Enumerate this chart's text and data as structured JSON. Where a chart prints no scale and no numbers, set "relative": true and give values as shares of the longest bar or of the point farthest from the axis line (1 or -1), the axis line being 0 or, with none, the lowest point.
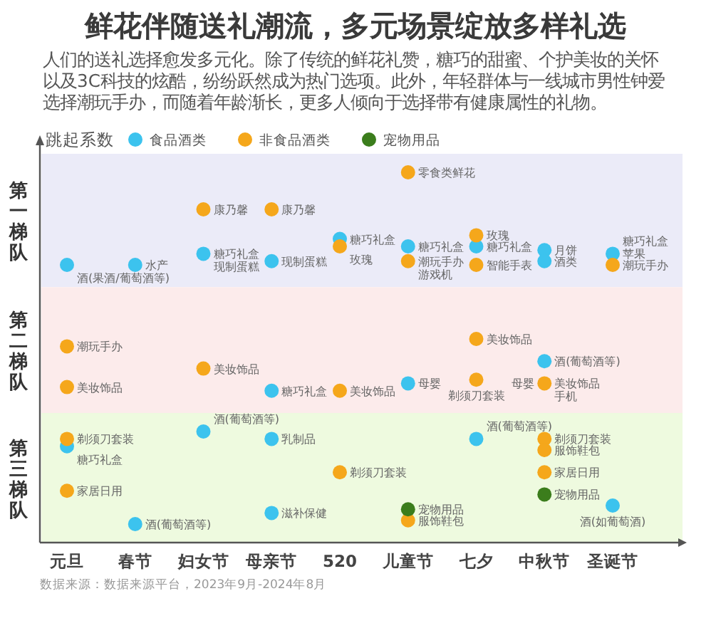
{
  "chart_data": {
    "type": "scatter",
    "title": "鲜花伴随送礼潮流，多元场景绽放多样礼选",
    "subtitle": "人们的送礼选择愈发多元化。除了传统的鲜花礼赞，糖巧的甜蜜、个护美妆的关怀以及3C科技的炫酷，纷纷跃然成为热门选项。此外，年轻群体与一线城市男性钟爱选择潮玩手办，而随着年龄渐长，更多人倾向于选择带有健康属性的礼物。",
    "ylabel": "跳起系数",
    "categories": [
      "元旦",
      "春节",
      "妇女节",
      "母亲节",
      "520",
      "儿童节",
      "七夕",
      "中秋节",
      "圣诞节"
    ],
    "relative": true,
    "marker": "circle",
    "legend": "top",
    "series": [
      {
        "name": "食品酒类",
        "color": "#3cc3ee",
        "x": [
          "520",
          "儿童节",
          "七夕",
          "中秋节",
          "圣诞节",
          "元旦",
          "春节",
          "妇女节",
          "母亲节",
          "中秋节",
          "母亲节",
          "儿童节",
          "中秋节",
          "元旦",
          "春节",
          "妇女节",
          "母亲节",
          "母亲节",
          "七夕",
          "圣诞节"
        ],
        "values": [
          0.82,
          0.8,
          0.8,
          0.79,
          0.78,
          0.75,
          0.75,
          0.78,
          0.76,
          0.76,
          0.41,
          0.43,
          0.49,
          0.26,
          0.05,
          0.3,
          0.28,
          0.08,
          0.28,
          0.1
        ]
      },
      {
        "name": "非食品酒类",
        "color": "#f5a71b",
        "x": [
          "妇女节",
          "母亲节",
          "520",
          "儿童节",
          "七夕",
          "儿童节",
          "七夕",
          "圣诞节",
          "元旦",
          "元旦",
          "妇女节",
          "520",
          "七夕",
          "中秋节",
          "七夕",
          "元旦",
          "元旦",
          "520",
          "儿童节",
          "中秋节",
          "中秋节",
          "中秋节"
        ],
        "values": [
          0.9,
          0.9,
          0.8,
          1.0,
          0.83,
          0.76,
          0.75,
          0.75,
          0.53,
          0.42,
          0.47,
          0.41,
          0.44,
          0.43,
          0.55,
          0.28,
          0.14,
          0.19,
          0.06,
          0.28,
          0.25,
          0.19
        ]
      },
      {
        "name": "宠物用品",
        "color": "#3b7d1c",
        "x": [
          "儿童节",
          "中秋节"
        ],
        "values": [
          0.09,
          0.13
        ]
      }
    ],
    "bands": [
      {
        "axis": "y",
        "from": 0.69,
        "to": 1.05,
        "label": "第一梯队",
        "color": "#ebebf8"
      },
      {
        "axis": "y",
        "from": 0.35,
        "to": 0.69,
        "label": "第二梯队",
        "color": "#fcebeb"
      },
      {
        "axis": "y",
        "from": 0.0,
        "to": 0.35,
        "label": "第三梯队",
        "color": "#eefadf"
      }
    ],
    "annotations": [
      {
        "text": "零食类鲜花",
        "x": "儿童节",
        "y": 1.0
      },
      {
        "text": "康乃馨",
        "x": "妇女节",
        "y": 0.9
      },
      {
        "text": "康乃馨",
        "x": "母亲节",
        "y": 0.9
      },
      {
        "text": "玫瑰",
        "x": "七夕",
        "y": 0.83
      },
      {
        "text": "糖巧礼盒",
        "x": "520",
        "y": 0.82
      },
      {
        "text": "玫瑰",
        "x": "520",
        "y": 0.8
      },
      {
        "text": "糖巧礼盒",
        "x": "儿童节",
        "y": 0.8
      },
      {
        "text": "糖巧礼盒",
        "x": "七夕",
        "y": 0.8
      },
      {
        "text": "月饼",
        "x": "中秋节",
        "y": 0.79
      },
      {
        "text": "苹果",
        "x": "圣诞节",
        "y": 0.78
      },
      {
        "text": "潮玩手办",
        "x": "圣诞节",
        "y": 0.75
      },
      {
        "text": "糖巧礼盒",
        "x": "圣诞节",
        "y": 0.78
      },
      {
        "text": "酒(果酒/葡萄酒等)",
        "x": "元旦",
        "y": 0.75
      },
      {
        "text": "水产",
        "x": "春节",
        "y": 0.75
      },
      {
        "text": "糖巧礼盒",
        "x": "妇女节",
        "y": 0.78
      },
      {
        "text": "现制蛋糕",
        "x": "妇女节",
        "y": 0.78
      },
      {
        "text": "现制蛋糕",
        "x": "母亲节",
        "y": 0.76
      },
      {
        "text": "潮玩手办",
        "x": "儿童节",
        "y": 0.76
      },
      {
        "text": "游戏机",
        "x": "儿童节",
        "y": 0.76
      },
      {
        "text": "智能手表",
        "x": "七夕",
        "y": 0.75
      },
      {
        "text": "酒类",
        "x": "中秋节",
        "y": 0.76
      },
      {
        "text": "潮玩手办",
        "x": "元旦",
        "y": 0.53
      },
      {
        "text": "美妆饰品",
        "x": "元旦",
        "y": 0.42
      },
      {
        "text": "美妆饰品",
        "x": "妇女节",
        "y": 0.47
      },
      {
        "text": "糖巧礼盒",
        "x": "母亲节",
        "y": 0.41
      },
      {
        "text": "美妆饰品",
        "x": "520",
        "y": 0.41
      },
      {
        "text": "母婴",
        "x": "儿童节",
        "y": 0.43
      },
      {
        "text": "美妆饰品",
        "x": "七夕",
        "y": 0.55
      },
      {
        "text": "剃须刀套装",
        "x": "七夕",
        "y": 0.44
      },
      {
        "text": "酒(葡萄酒等)",
        "x": "中秋节",
        "y": 0.49
      },
      {
        "text": "美妆饰品",
        "x": "中秋节",
        "y": 0.43
      },
      {
        "text": "手机",
        "x": "中秋节",
        "y": 0.43
      },
      {
        "text": "母婴",
        "x": "中秋节",
        "y": 0.43
      },
      {
        "text": "剃须刀套装",
        "x": "元旦",
        "y": 0.28
      },
      {
        "text": "糖巧礼盒",
        "x": "元旦",
        "y": 0.26
      },
      {
        "text": "家居日用",
        "x": "元旦",
        "y": 0.14
      },
      {
        "text": "酒(葡萄酒等)",
        "x": "春节",
        "y": 0.05
      },
      {
        "text": "酒(葡萄酒等)",
        "x": "妇女节",
        "y": 0.3
      },
      {
        "text": "乳制品",
        "x": "母亲节",
        "y": 0.28
      },
      {
        "text": "滋补保健",
        "x": "母亲节",
        "y": 0.08
      },
      {
        "text": "剃须刀套装",
        "x": "520",
        "y": 0.19
      },
      {
        "text": "宠物用品",
        "x": "儿童节",
        "y": 0.09
      },
      {
        "text": "服饰鞋包",
        "x": "儿童节",
        "y": 0.06
      },
      {
        "text": "酒(葡萄酒等)",
        "x": "七夕",
        "y": 0.28
      },
      {
        "text": "剃须刀套装",
        "x": "中秋节",
        "y": 0.28
      },
      {
        "text": "服饰鞋包",
        "x": "中秋节",
        "y": 0.25
      },
      {
        "text": "家居日用",
        "x": "中秋节",
        "y": 0.19
      },
      {
        "text": "宠物用品",
        "x": "中秋节",
        "y": 0.13
      },
      {
        "text": "酒(如葡萄酒)",
        "x": "圣诞节",
        "y": 0.1
      },
      "数据来源：数据来源平台，2023年9月-2024年8月"
    ]
  }
}
